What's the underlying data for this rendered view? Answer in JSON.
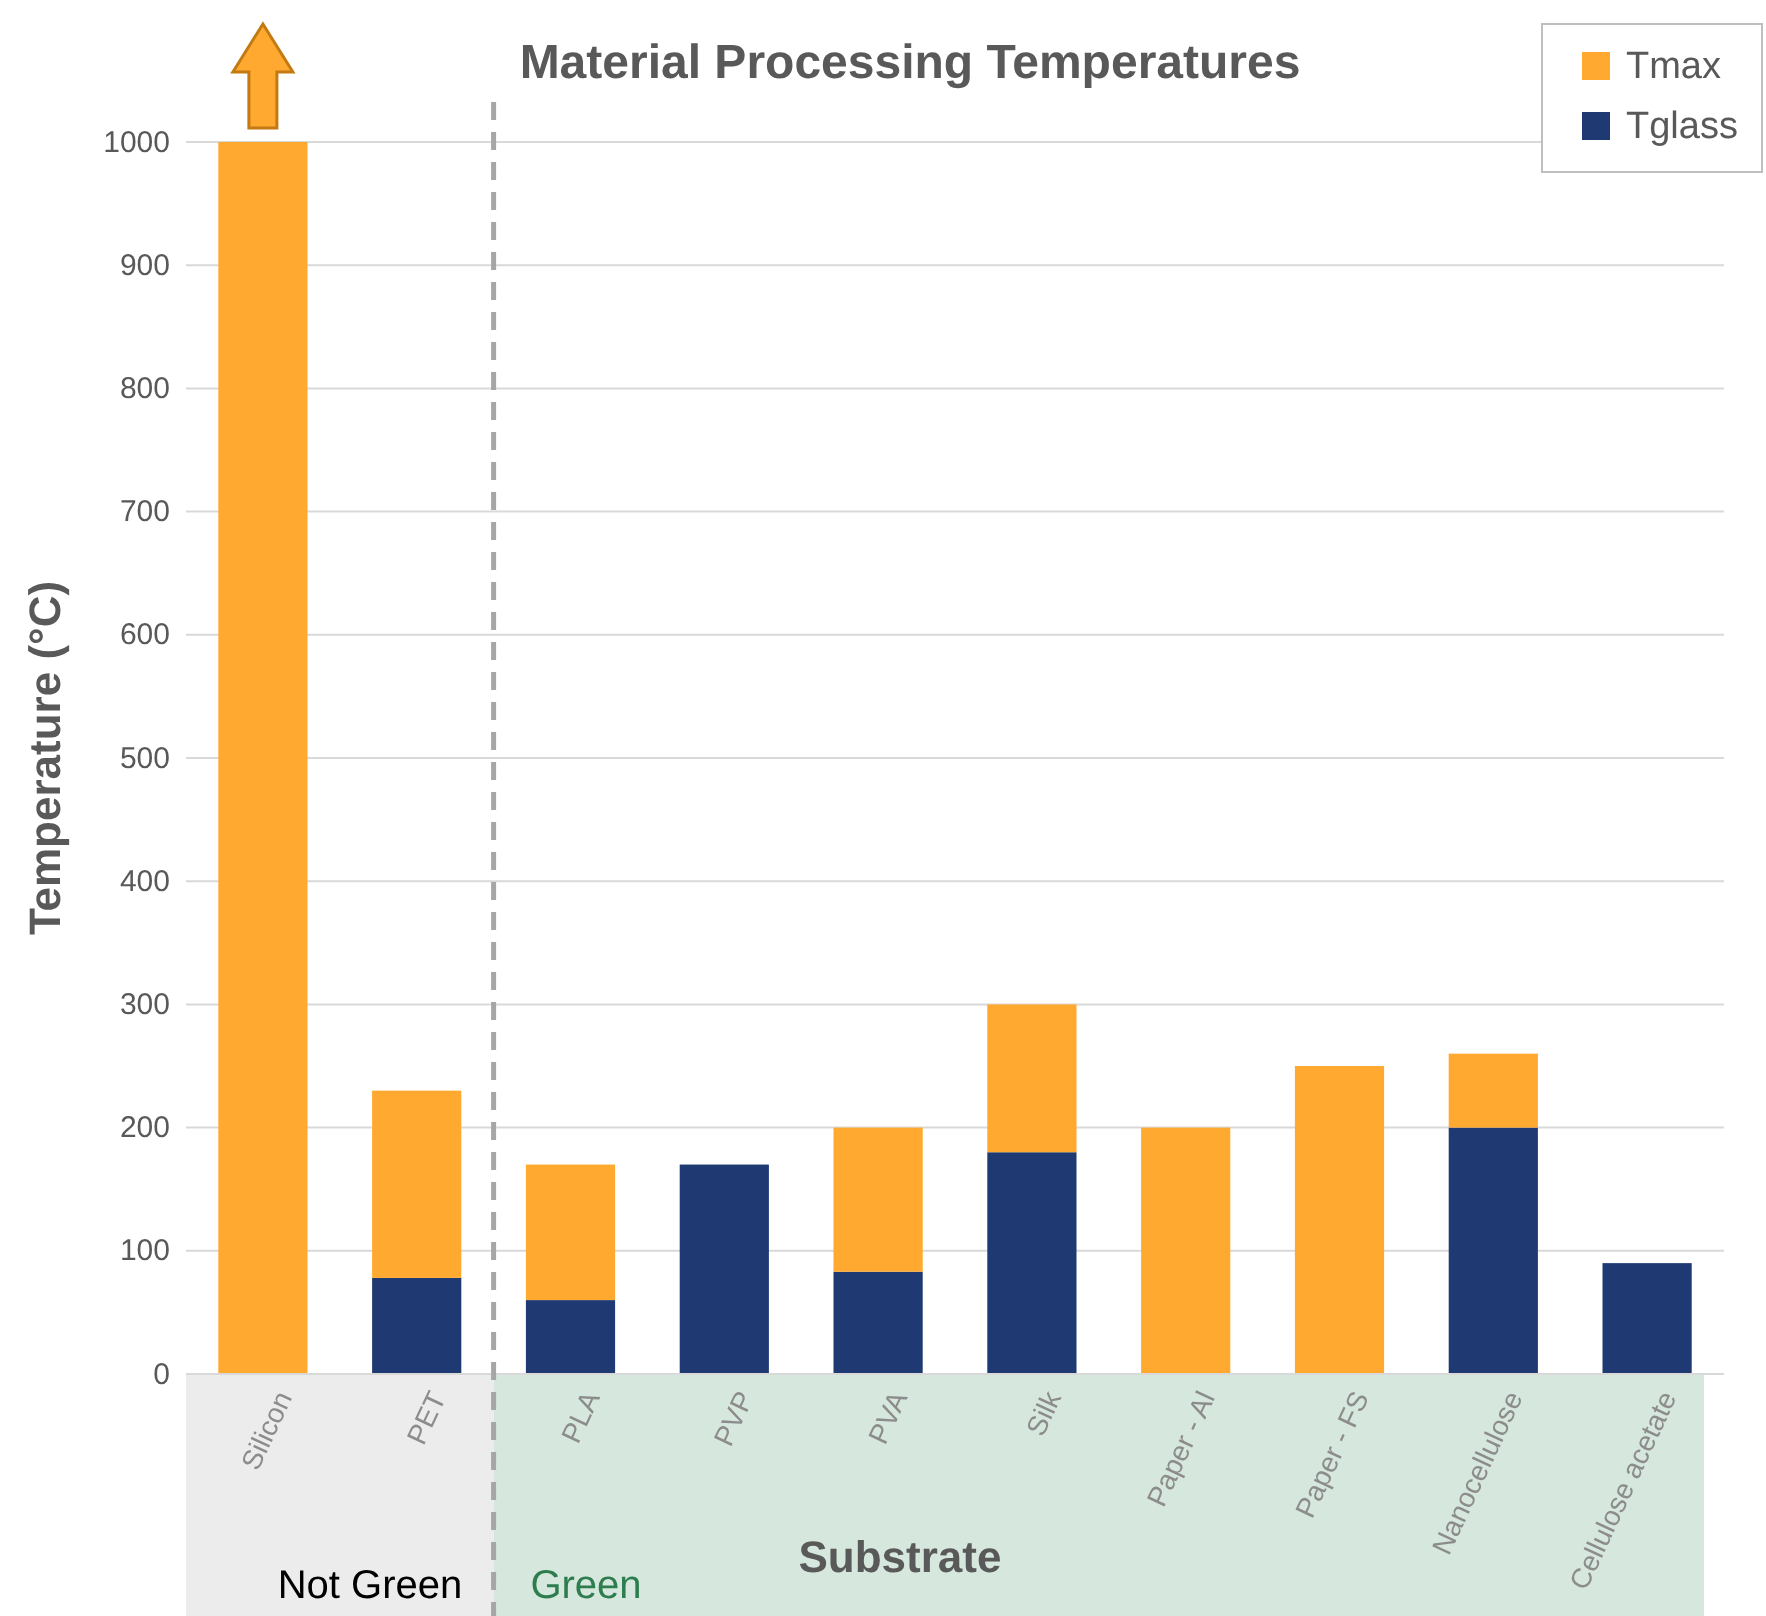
{
  "chart_data": {
    "type": "bar",
    "title": "Material Processing Temperatures",
    "xlabel": "Substrate",
    "ylabel": "Temperature (°C)",
    "categories": [
      "Silicon",
      "PET",
      "PLA",
      "PVP",
      "PVA",
      "Silk",
      "Paper - Al",
      "Paper - FS",
      "Nanocellulose",
      "Cellulose acetate"
    ],
    "stacked": true,
    "series": [
      {
        "name": "Tglass",
        "color": "#1f3a73",
        "values": [
          0,
          78,
          60,
          170,
          83,
          180,
          0,
          0,
          200,
          90
        ]
      },
      {
        "name": "Tmax",
        "color": "#ffa931",
        "values": [
          1000,
          152,
          110,
          0,
          117,
          120,
          200,
          250,
          60,
          0
        ]
      }
    ],
    "ylim": [
      0,
      1000
    ],
    "yticks": [
      0,
      100,
      200,
      300,
      400,
      500,
      600,
      700,
      800,
      900,
      1000
    ],
    "grid": "y",
    "legend": "top right",
    "annotations": [
      "Not Green",
      "Green"
    ]
  }
}
